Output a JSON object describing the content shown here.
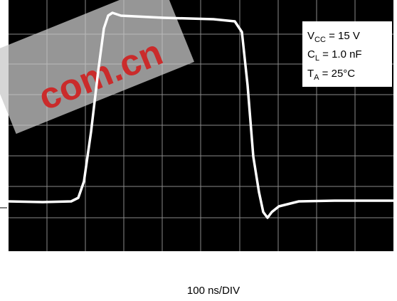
{
  "annotation": {
    "lines": [
      {
        "main": "V",
        "sub": "CC",
        "rest": " = 15 V"
      },
      {
        "main": "C",
        "sub": "L",
        "rest": " = 1.0 nF"
      },
      {
        "main": "T",
        "sub": "A",
        "rest": " = 25°C"
      }
    ]
  },
  "watermark": "com.cn",
  "x_label": "100 ns/DIV"
}
